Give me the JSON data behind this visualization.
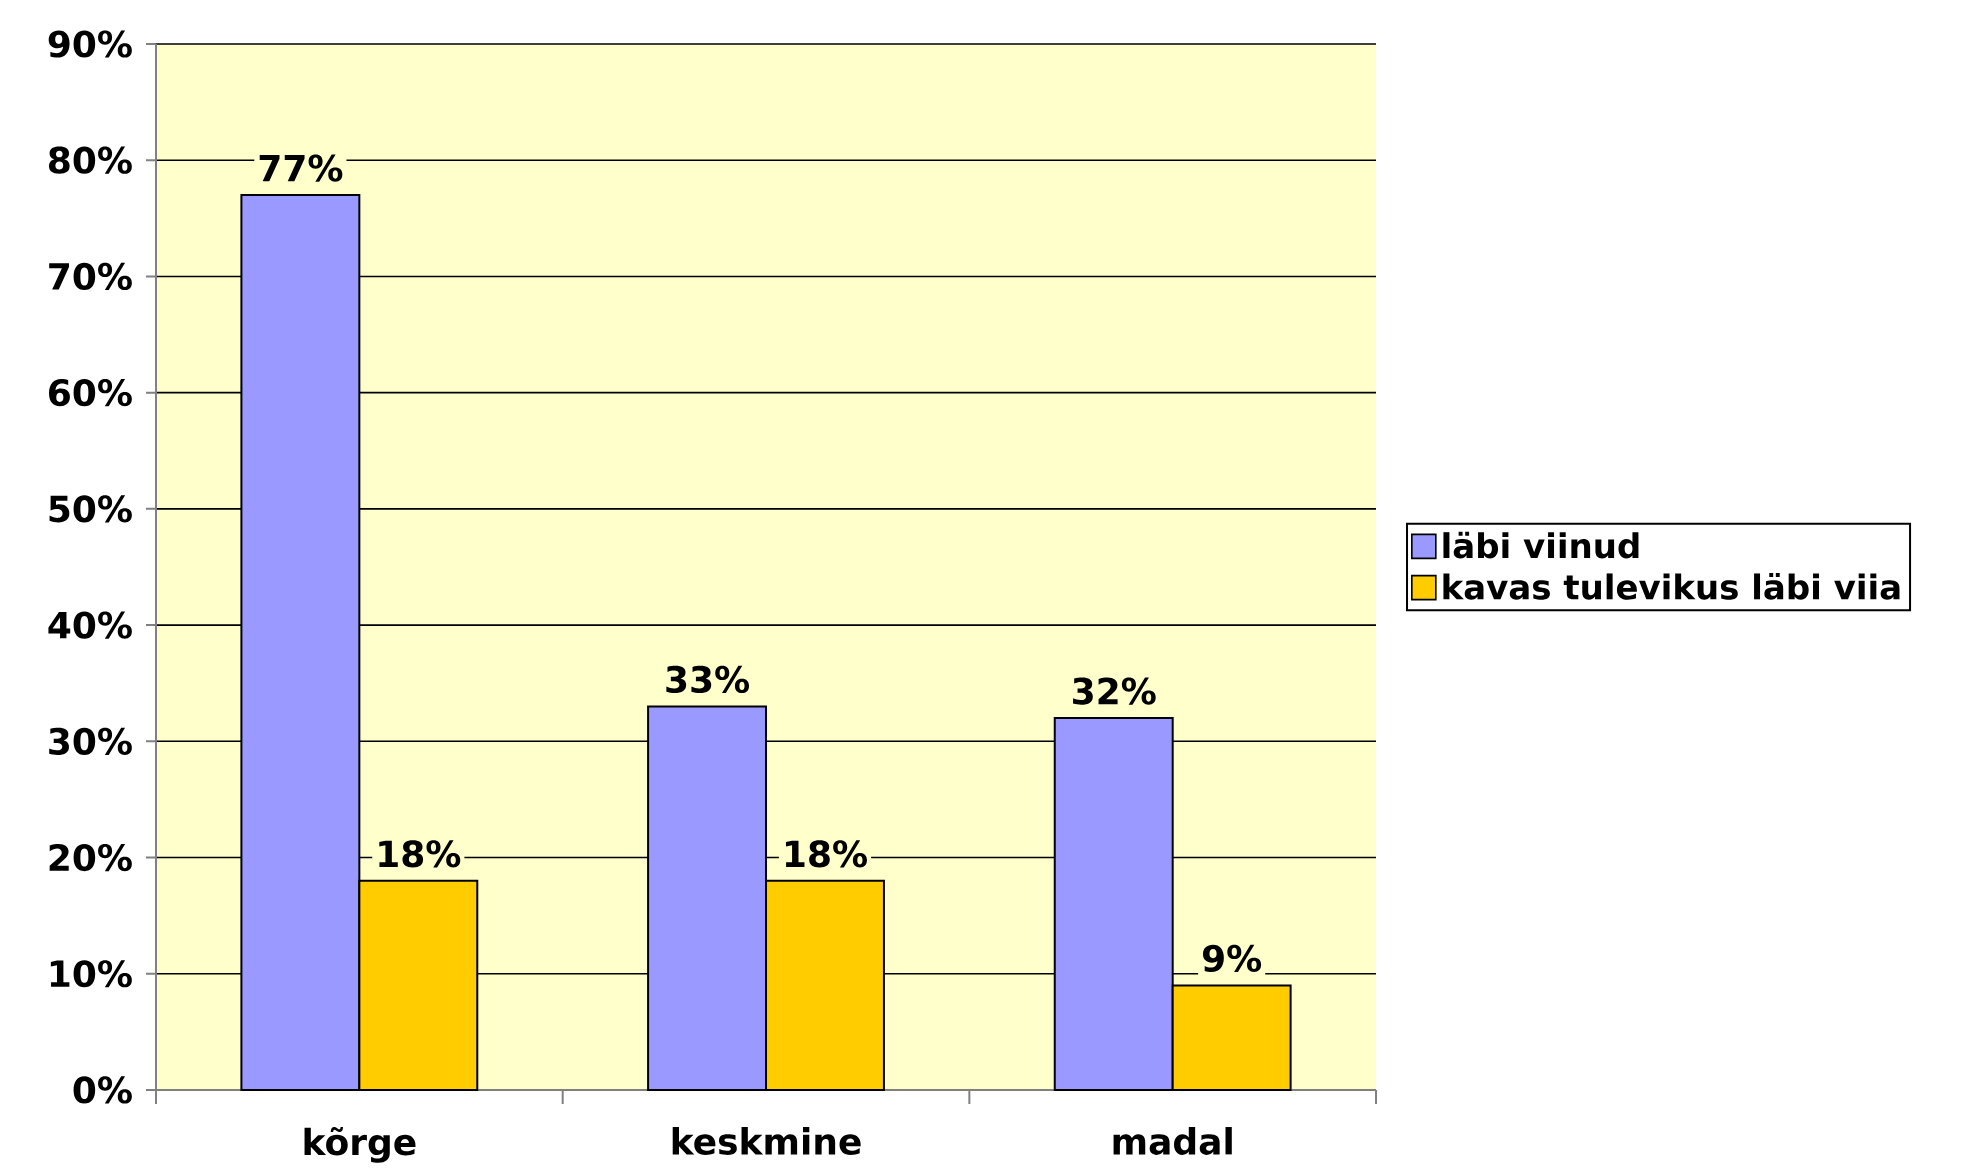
{
  "chart_data": {
    "type": "bar",
    "categories": [
      "kõrge",
      "keskmine",
      "madal"
    ],
    "series": [
      {
        "name": "läbi viinud",
        "color": "#9999ff",
        "values": [
          77,
          33,
          32
        ],
        "value_labels": [
          "77%",
          "33%",
          "32%"
        ]
      },
      {
        "name": "kavas tulevikus läbi viia",
        "color": "#ffcc00",
        "values": [
          18,
          18,
          9
        ],
        "value_labels": [
          "18%",
          "18%",
          "9%"
        ]
      }
    ],
    "ylim": [
      0,
      90
    ],
    "yticks": [
      {
        "value": 0,
        "label": "0%"
      },
      {
        "value": 10,
        "label": "10%"
      },
      {
        "value": 20,
        "label": "20%"
      },
      {
        "value": 30,
        "label": "30%"
      },
      {
        "value": 40,
        "label": "40%"
      },
      {
        "value": 50,
        "label": "50%"
      },
      {
        "value": 60,
        "label": "60%"
      },
      {
        "value": 70,
        "label": "70%"
      },
      {
        "value": 80,
        "label": "80%"
      },
      {
        "value": 90,
        "label": "90%"
      }
    ],
    "grid": "y",
    "legend": "right"
  }
}
